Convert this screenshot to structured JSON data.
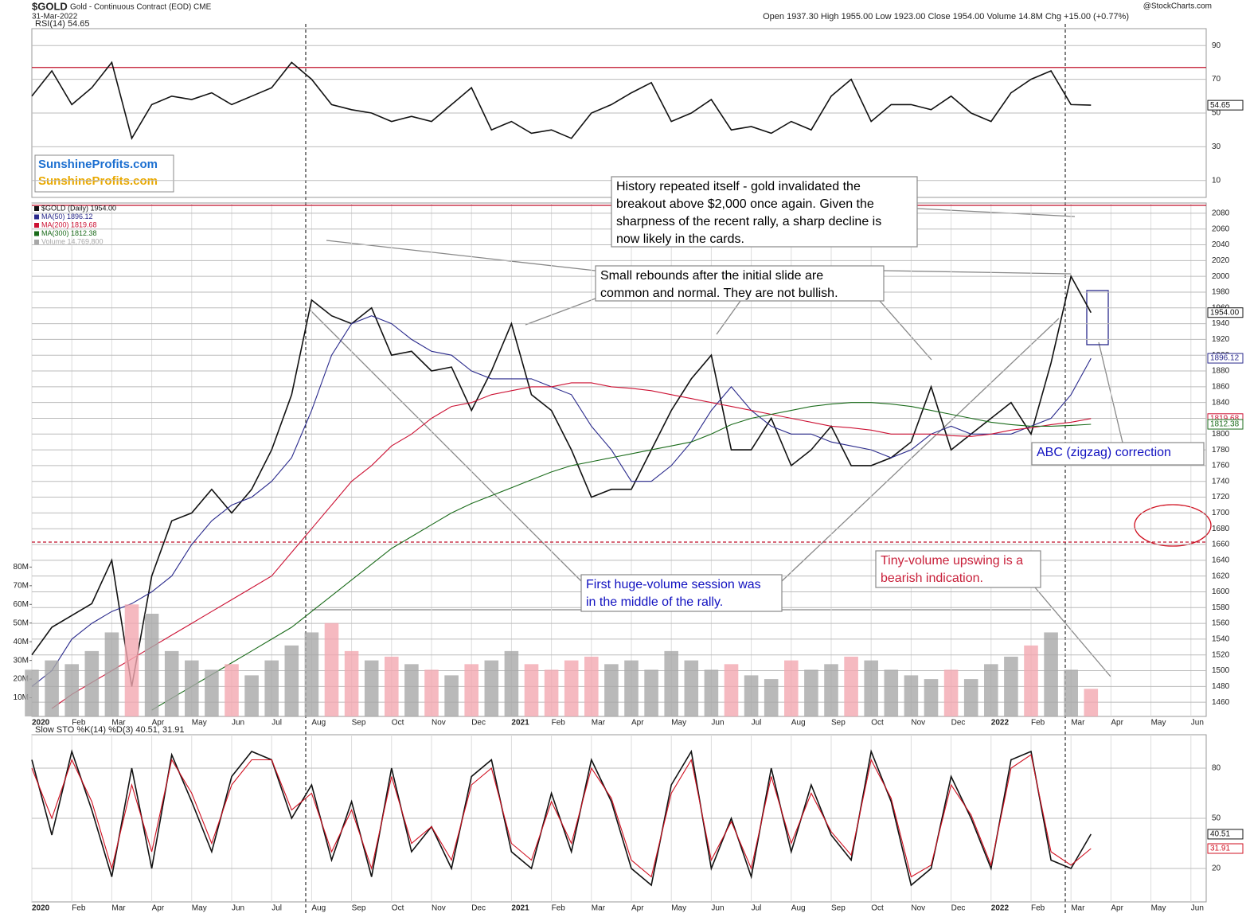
{
  "header": {
    "symbol": "$GOLD",
    "name": "Gold - Continuous Contract (EOD) CME",
    "date": "31-Mar-2022",
    "stats": "Open 1937.30   High 1955.00   Low 1923.00   Close 1954.00   Volume 14.8M   Chg +15.00 (+0.77%)",
    "source": "@StockCharts.com"
  },
  "logo": [
    "SunshineProfits.com",
    "SunshineProfits.com"
  ],
  "chart_data": [
    {
      "type": "line",
      "title": "RSI(14) 54.65",
      "ylim": [
        0,
        100
      ],
      "yticks": [
        10,
        30,
        50,
        70,
        90
      ],
      "grid": true,
      "reference_lines": [
        {
          "value": 77,
          "color": "#c0102a",
          "dash": false
        }
      ],
      "series": [
        {
          "name": "RSI(14)",
          "color": "#111111",
          "tag": true,
          "values": [
            60,
            75,
            55,
            65,
            80,
            35,
            55,
            60,
            58,
            62,
            55,
            60,
            65,
            80,
            70,
            55,
            52,
            50,
            45,
            48,
            45,
            55,
            65,
            40,
            45,
            38,
            40,
            35,
            50,
            55,
            62,
            68,
            45,
            50,
            58,
            40,
            42,
            38,
            45,
            40,
            60,
            70,
            45,
            55,
            55,
            52,
            60,
            50,
            45,
            62,
            70,
            75,
            55,
            54.65,
            null,
            null,
            null,
            null,
            null,
            null
          ]
        }
      ]
    },
    {
      "type": "line",
      "legend": true,
      "ylim": [
        1442,
        2093
      ],
      "y2lim": [
        0,
        275
      ],
      "grid": true,
      "categories": [
        "2020",
        null,
        "Feb",
        null,
        "Mar",
        null,
        "Apr",
        null,
        "May",
        null,
        "Jun",
        null,
        "Jul",
        null,
        "Aug",
        null,
        "Sep",
        null,
        "Oct",
        null,
        "Nov",
        null,
        "Dec",
        null,
        "2021",
        null,
        "Feb",
        null,
        "Mar",
        null,
        "Apr",
        null,
        "May",
        null,
        "Jun",
        null,
        "Jul",
        null,
        "Aug",
        null,
        "Sep",
        null,
        "Oct",
        null,
        "Nov",
        null,
        "Dec",
        null,
        "2022",
        null,
        "Feb",
        null,
        "Mar",
        null,
        "Apr",
        null,
        "May",
        null,
        "Jun",
        null
      ],
      "yticks": [
        1460,
        1480,
        1500,
        1520,
        1540,
        1560,
        1580,
        1600,
        1620,
        1640,
        1660,
        1680,
        1700,
        1720,
        1740,
        1760,
        1780,
        1800,
        1820,
        1840,
        1860,
        1880,
        1900,
        1920,
        1940,
        1960,
        1980,
        2000,
        2020,
        2040,
        2060,
        2080
      ],
      "y2ticks": [
        {
          "value": 10,
          "label": "10M"
        },
        {
          "value": 20,
          "label": "20M"
        },
        {
          "value": 30,
          "label": "30M"
        },
        {
          "value": 40,
          "label": "40M"
        },
        {
          "value": 50,
          "label": "50M"
        },
        {
          "value": 60,
          "label": "60M"
        },
        {
          "value": 70,
          "label": "70M"
        },
        {
          "value": 80,
          "label": "80M"
        }
      ],
      "reference_lines": [
        {
          "value": 2090,
          "color": "#c0102a",
          "dash": false
        },
        {
          "value": 1663,
          "color": "#c0102a",
          "dash": true
        }
      ],
      "series": [
        {
          "name": "$GOLD (Daily) 1954.00",
          "color": "#111111",
          "tag": true,
          "last_label": "1954.00",
          "values": [
            1520,
            1555,
            1570,
            1585,
            1640,
            1480,
            1620,
            1690,
            1700,
            1730,
            1700,
            1730,
            1780,
            1850,
            1970,
            1950,
            1940,
            1960,
            1900,
            1905,
            1880,
            1885,
            1830,
            1880,
            1940,
            1850,
            1830,
            1780,
            1720,
            1730,
            1730,
            1780,
            1830,
            1870,
            1900,
            1780,
            1780,
            1820,
            1760,
            1780,
            1810,
            1760,
            1760,
            1770,
            1790,
            1860,
            1780,
            1800,
            1820,
            1840,
            1800,
            1890,
            2000,
            1954,
            null,
            null,
            null,
            null,
            null,
            null
          ]
        },
        {
          "name": "MA(50) 1896.12",
          "color": "#2a2a8c",
          "tag": true,
          "values": [
            1480,
            1500,
            1540,
            1560,
            1575,
            1585,
            1600,
            1620,
            1660,
            1690,
            1710,
            1720,
            1740,
            1770,
            1830,
            1900,
            1940,
            1950,
            1940,
            1920,
            1905,
            1900,
            1880,
            1870,
            1870,
            1870,
            1860,
            1850,
            1810,
            1780,
            1740,
            1740,
            1760,
            1790,
            1830,
            1860,
            1830,
            1810,
            1800,
            1800,
            1790,
            1785,
            1780,
            1770,
            1780,
            1800,
            1810,
            1800,
            1800,
            1800,
            1810,
            1820,
            1850,
            1896.12,
            null,
            null,
            null,
            null,
            null,
            null
          ]
        },
        {
          "name": "MA(200) 1819.68",
          "color": "#cc1133",
          "tag": true,
          "values": [
            null,
            1452,
            1470,
            1485,
            1500,
            1515,
            1530,
            1545,
            1560,
            1575,
            1590,
            1605,
            1620,
            1650,
            1680,
            1710,
            1740,
            1760,
            1785,
            1800,
            1820,
            1835,
            1840,
            1850,
            1855,
            1860,
            1860,
            1865,
            1865,
            1860,
            1858,
            1855,
            1850,
            1845,
            1840,
            1835,
            1830,
            1825,
            1820,
            1815,
            1810,
            1808,
            1805,
            1800,
            1800,
            1800,
            1798,
            1797,
            1800,
            1805,
            1808,
            1812,
            1815,
            1819.68,
            null,
            null,
            null,
            null,
            null,
            null
          ]
        },
        {
          "name": "MA(300) 1812.38",
          "color": "#1a6b1a",
          "tag": true,
          "values": [
            null,
            null,
            null,
            null,
            null,
            null,
            1450,
            1465,
            1480,
            1495,
            1510,
            1525,
            1540,
            1555,
            1575,
            1595,
            1615,
            1635,
            1655,
            1670,
            1685,
            1700,
            1712,
            1722,
            1732,
            1742,
            1752,
            1760,
            1765,
            1770,
            1775,
            1780,
            1785,
            1790,
            1800,
            1812,
            1820,
            1825,
            1830,
            1835,
            1838,
            1840,
            1840,
            1838,
            1835,
            1830,
            1825,
            1820,
            1815,
            1812,
            1810,
            1810,
            1811,
            1812.38,
            null,
            null,
            null,
            null,
            null,
            null
          ]
        },
        {
          "name": "Volume 14,769,800",
          "type": "bar",
          "axis": "y2",
          "up_color": "#a8a8a8",
          "down_color": "#f2a7b0",
          "color": "#a8a8a8",
          "values": [
            25,
            30,
            28,
            35,
            45,
            60,
            55,
            35,
            30,
            25,
            28,
            22,
            30,
            38,
            45,
            50,
            35,
            30,
            32,
            28,
            25,
            22,
            28,
            30,
            35,
            28,
            25,
            30,
            32,
            28,
            30,
            25,
            35,
            30,
            25,
            28,
            22,
            20,
            30,
            25,
            28,
            32,
            30,
            25,
            22,
            20,
            25,
            20,
            28,
            32,
            38,
            45,
            25,
            14.7698,
            null,
            null,
            null,
            null,
            null,
            null
          ]
        }
      ],
      "annotations": [
        {
          "lines": [
            "History repeated itself - gold invalidated the",
            "breakout above $2,000 once again. Given the",
            "sharpness of the recent rally, a sharp decline is",
            "now likely in the cards."
          ],
          "color": "#000000"
        },
        {
          "lines": [
            "Small rebounds after the initial slide are",
            "common and normal. They are not bullish."
          ],
          "color": "#000000"
        },
        {
          "lines": [
            "First huge-volume session was",
            "in the middle of the rally."
          ],
          "color": "#1010c0"
        },
        {
          "lines": [
            "Tiny-volume upswing is a",
            "bearish indication."
          ],
          "color": "#c8203a"
        },
        {
          "lines": [
            "ABC (zigzag) correction"
          ],
          "color": "#1010c0"
        }
      ]
    },
    {
      "type": "line",
      "title": "Slow STO %K(14) %D(3) 40.51, 31.91",
      "ylim": [
        0,
        100
      ],
      "yticks": [
        20,
        50,
        80
      ],
      "grid": true,
      "categories": [
        "2020",
        null,
        "Feb",
        null,
        "Mar",
        null,
        "Apr",
        null,
        "May",
        null,
        "Jun",
        null,
        "Jul",
        null,
        "Aug",
        null,
        "Sep",
        null,
        "Oct",
        null,
        "Nov",
        null,
        "Dec",
        null,
        "2021",
        null,
        "Feb",
        null,
        "Mar",
        null,
        "Apr",
        null,
        "May",
        null,
        "Jun",
        null,
        "Jul",
        null,
        "Aug",
        null,
        "Sep",
        null,
        "Oct",
        null,
        "Nov",
        null,
        "Dec",
        null,
        "2022",
        null,
        "Feb",
        null,
        "Mar",
        null,
        "Apr",
        null,
        "May",
        null,
        "Jun",
        null
      ],
      "series": [
        {
          "name": "%K(14)",
          "color": "#111111",
          "tag": true,
          "values": [
            85,
            40,
            90,
            55,
            15,
            80,
            20,
            88,
            60,
            30,
            75,
            90,
            85,
            50,
            70,
            25,
            60,
            15,
            80,
            30,
            45,
            20,
            75,
            85,
            30,
            20,
            65,
            30,
            85,
            60,
            20,
            10,
            70,
            90,
            20,
            50,
            15,
            80,
            30,
            70,
            40,
            25,
            90,
            60,
            10,
            20,
            75,
            50,
            20,
            85,
            90,
            25,
            20,
            40.51,
            null,
            null,
            null,
            null,
            null,
            null
          ]
        },
        {
          "name": "%D(3)",
          "color": "#d01020",
          "tag": true,
          "values": [
            80,
            50,
            85,
            60,
            20,
            70,
            30,
            85,
            65,
            35,
            70,
            85,
            85,
            55,
            65,
            30,
            55,
            20,
            75,
            35,
            45,
            25,
            70,
            80,
            35,
            25,
            60,
            35,
            80,
            62,
            25,
            15,
            65,
            85,
            25,
            48,
            20,
            75,
            35,
            65,
            42,
            28,
            85,
            62,
            15,
            22,
            70,
            52,
            22,
            80,
            88,
            30,
            22,
            31.91,
            null,
            null,
            null,
            null,
            null,
            null
          ]
        }
      ]
    }
  ]
}
